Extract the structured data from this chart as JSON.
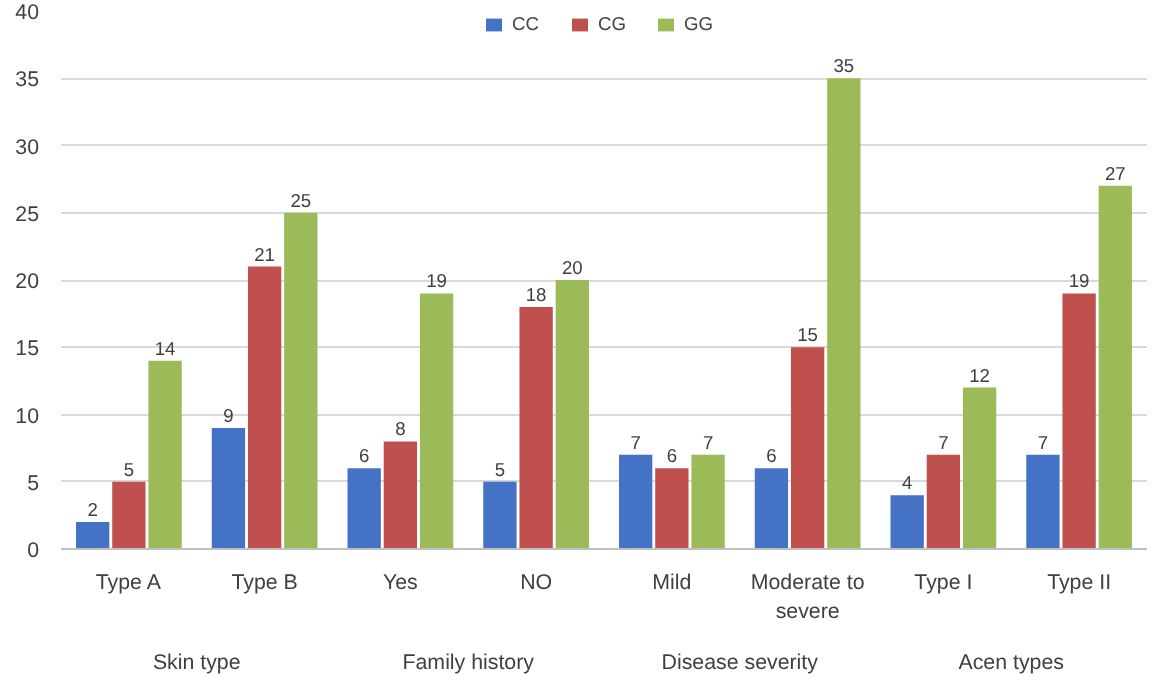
{
  "chart_data": {
    "type": "bar",
    "categories": [
      "Type A",
      "Type B",
      "Yes",
      "NO",
      "Mild",
      "Moderate to severe",
      "Type I",
      "Type II"
    ],
    "annotations": [
      "Skin type",
      "Family history",
      "Disease severity",
      "Acen types"
    ],
    "series": [
      {
        "name": "CC",
        "color": "#4472c4",
        "values": [
          2,
          9,
          6,
          5,
          7,
          6,
          4,
          7
        ]
      },
      {
        "name": "CG",
        "color": "#c0504d",
        "values": [
          5,
          21,
          8,
          18,
          6,
          15,
          7,
          19
        ]
      },
      {
        "name": "GG",
        "color": "#9bbb59",
        "values": [
          14,
          25,
          19,
          20,
          7,
          35,
          12,
          27
        ]
      }
    ],
    "ylim": [
      0,
      40
    ],
    "yticks": [
      0,
      5,
      10,
      15,
      20,
      25,
      30,
      35,
      40
    ],
    "grid": "y",
    "legend": "top",
    "data_labels": true
  }
}
